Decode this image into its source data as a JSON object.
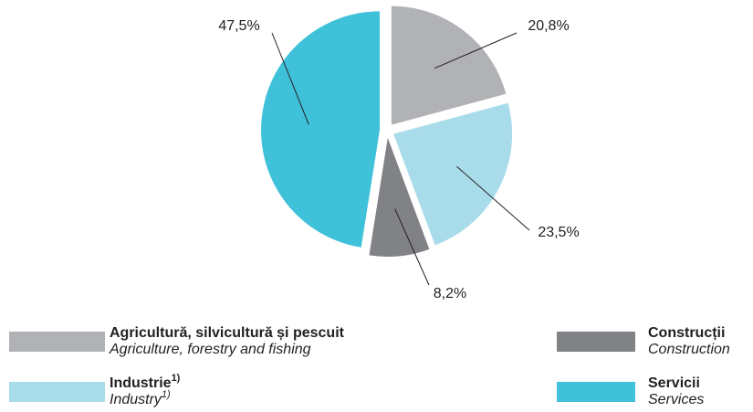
{
  "chart_data": {
    "type": "pie",
    "categories": [
      "Agricultură, silvicultură și pescuit",
      "Industrie",
      "Construcții",
      "Servicii"
    ],
    "categories_en": [
      "Agriculture, forestry and fishing",
      "Industry",
      "Construction",
      "Services"
    ],
    "legend_notes": {
      "1": "1)"
    },
    "values": [
      20.8,
      23.5,
      8.2,
      47.5
    ],
    "value_labels": [
      "20,8%",
      "23,5%",
      "8,2%",
      "47,5%"
    ],
    "colors": [
      "#b1b2b6",
      "#a9dcea",
      "#808285",
      "#40c1da"
    ]
  }
}
